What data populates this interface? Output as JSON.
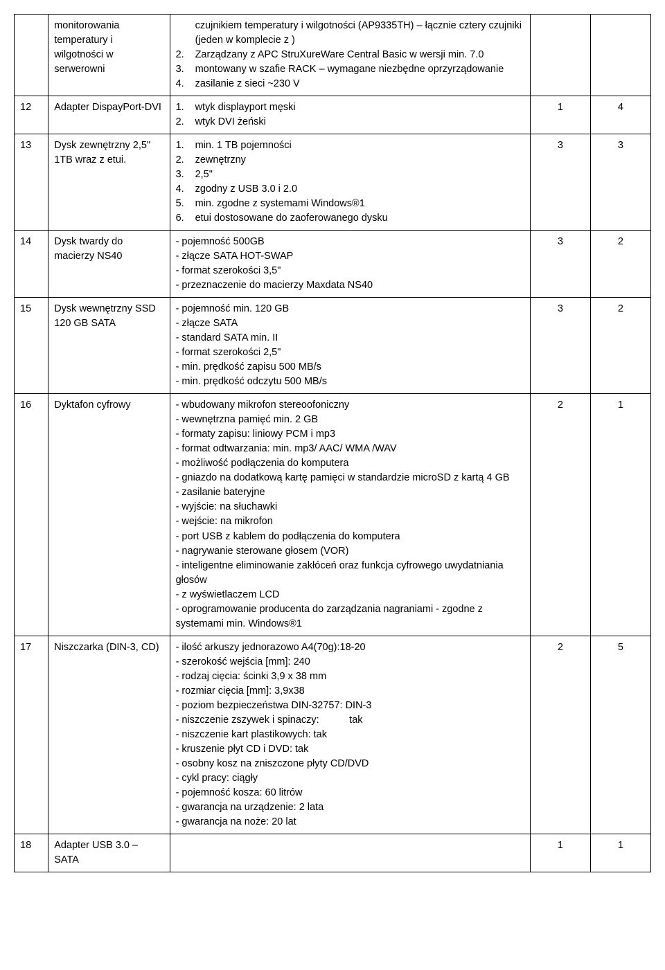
{
  "rows": [
    {
      "num": "",
      "name": "monitorowania temperatury i wilgotności w serwerowni",
      "desc": [
        {
          "n": "",
          "t": "czujnikiem temperatury i wilgotności (AP9335TH) – łącznie cztery czujniki (jeden w komplecie z )"
        },
        {
          "n": "2.",
          "t": "Zarządzany z APC StruXureWare Central Basic w wersji min. 7.0"
        },
        {
          "n": "3.",
          "t": "montowany w szafie RACK – wymagane niezbędne oprzyrządowanie"
        },
        {
          "n": "4.",
          "t": "zasilanie z sieci ~230 V"
        }
      ],
      "q1": "",
      "q2": ""
    },
    {
      "num": "12",
      "name": "Adapter DispayPort-DVI",
      "desc": [
        {
          "n": "1.",
          "t": "wtyk displayport męski"
        },
        {
          "n": "2.",
          "t": "wtyk DVI żeński"
        }
      ],
      "q1": "1",
      "q2": "4"
    },
    {
      "num": "13",
      "name": "Dysk zewnętrzny 2,5\" 1TB wraz z etui.",
      "desc": [
        {
          "n": "1.",
          "t": "min. 1 TB pojemności"
        },
        {
          "n": "2.",
          "t": "zewnętrzny"
        },
        {
          "n": "3.",
          "t": "2,5\""
        },
        {
          "n": "4.",
          "t": "zgodny z USB 3.0 i 2.0"
        },
        {
          "n": "5.",
          "t": "min. zgodne z systemami Windows®1"
        },
        {
          "n": "6.",
          "t": "etui dostosowane do zaoferowanego dysku"
        }
      ],
      "q1": "3",
      "q2": "3"
    },
    {
      "num": "14",
      "name": "Dysk twardy do macierzy NS40",
      "desc": [
        {
          "n": "",
          "t": "- pojemność 500GB"
        },
        {
          "n": "",
          "t": "- złącze SATA HOT-SWAP"
        },
        {
          "n": "",
          "t": "- format szerokości 3,5\""
        },
        {
          "n": "",
          "t": "- przeznaczenie do macierzy Maxdata NS40"
        }
      ],
      "q1": "3",
      "q2": "2"
    },
    {
      "num": "15",
      "name": "Dysk wewnętrzny SSD 120 GB  SATA",
      "desc": [
        {
          "n": "",
          "t": "- pojemność min. 120 GB"
        },
        {
          "n": "",
          "t": "- złącze SATA"
        },
        {
          "n": "",
          "t": "- standard SATA min. II"
        },
        {
          "n": "",
          "t": "- format szerokości 2,5\""
        },
        {
          "n": "",
          "t": "- min. prędkość zapisu 500 MB/s"
        },
        {
          "n": "",
          "t": "- min. prędkość odczytu 500 MB/s"
        }
      ],
      "q1": "3",
      "q2": "2"
    },
    {
      "num": "16",
      "name": "Dyktafon cyfrowy",
      "desc": [
        {
          "n": "",
          "t": "- wbudowany mikrofon stereoofoniczny"
        },
        {
          "n": "",
          "t": "- wewnętrzna pamięć min. 2 GB"
        },
        {
          "n": "",
          "t": "- formaty zapisu: liniowy PCM i mp3"
        },
        {
          "n": "",
          "t": "- format odtwarzania: min. mp3/ AAC/ WMA /WAV"
        },
        {
          "n": "",
          "t": "- możliwość podłączenia do komputera"
        },
        {
          "n": "",
          "t": "- gniazdo na dodatkową kartę pamięci w standardzie microSD z kartą 4 GB"
        },
        {
          "n": "",
          "t": "- zasilanie bateryjne"
        },
        {
          "n": "",
          "t": "- wyjście: na słuchawki"
        },
        {
          "n": "",
          "t": "- wejście: na mikrofon"
        },
        {
          "n": "",
          "t": "- port USB z kablem do podłączenia do komputera"
        },
        {
          "n": "",
          "t": "- nagrywanie sterowane głosem (VOR)"
        },
        {
          "n": "",
          "t": "- inteligentne eliminowanie zakłóceń oraz funkcja cyfrowego uwydatniania głosów"
        },
        {
          "n": "",
          "t": "- z wyświetlaczem LCD"
        },
        {
          "n": "",
          "t": "- oprogramowanie producenta do zarządzania nagraniami - zgodne z systemami min. Windows®1"
        }
      ],
      "q1": "2",
      "q2": "1"
    },
    {
      "num": "17",
      "name": "Niszczarka (DIN-3, CD)",
      "desc": [
        {
          "n": "",
          "t": "- ilość arkuszy jednorazowo  A4(70g):18-20"
        },
        {
          "n": "",
          "t": "- szerokość wejścia [mm]: 240"
        },
        {
          "n": "",
          "t": "- rodzaj cięcia: ścinki 3,9 x 38 mm"
        },
        {
          "n": "",
          "t": "- rozmiar cięcia  [mm]: 3,9x38"
        },
        {
          "n": "",
          "t": "- poziom bezpieczeństwa DIN-32757: DIN-3"
        },
        {
          "n": "",
          "t": "- niszczenie zszywek i spinaczy:   tak"
        },
        {
          "n": "",
          "t": "- niszczenie kart plastikowych: tak"
        },
        {
          "n": "",
          "t": "- kruszenie płyt CD i DVD: tak"
        },
        {
          "n": "",
          "t": "- osobny kosz na zniszczone płyty CD/DVD"
        },
        {
          "n": "",
          "t": "- cykl pracy: ciągły"
        },
        {
          "n": "",
          "t": "- pojemność kosza: 60 litrów"
        },
        {
          "n": "",
          "t": "- gwarancja na urządzenie: 2 lata"
        },
        {
          "n": "",
          "t": " - gwarancja na noże: 20 lat"
        }
      ],
      "q1": "2",
      "q2": "5"
    },
    {
      "num": "18",
      "name": "Adapter USB 3.0 – SATA",
      "desc": [],
      "q1": "1",
      "q2": "1"
    }
  ]
}
